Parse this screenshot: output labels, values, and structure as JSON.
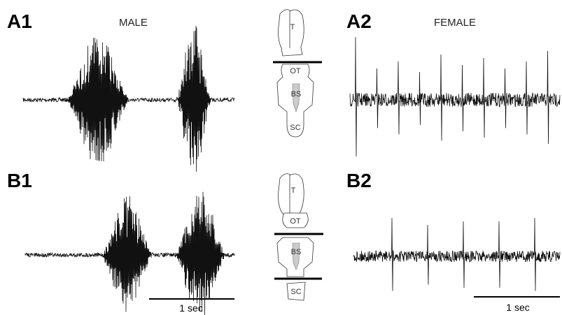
{
  "panels": [
    {
      "label": "A1",
      "title": "MALE"
    },
    {
      "label": "A2",
      "title": "FEMALE"
    },
    {
      "label": "B1"
    },
    {
      "label": "B2"
    }
  ],
  "diagrams": [
    {
      "labels": [
        "T",
        "OT",
        "BS",
        "SC"
      ]
    },
    {
      "labels": [
        "T",
        "OT",
        "BS",
        "SC"
      ]
    }
  ],
  "scale_bars": [
    "1 sec",
    "1 sec"
  ]
}
